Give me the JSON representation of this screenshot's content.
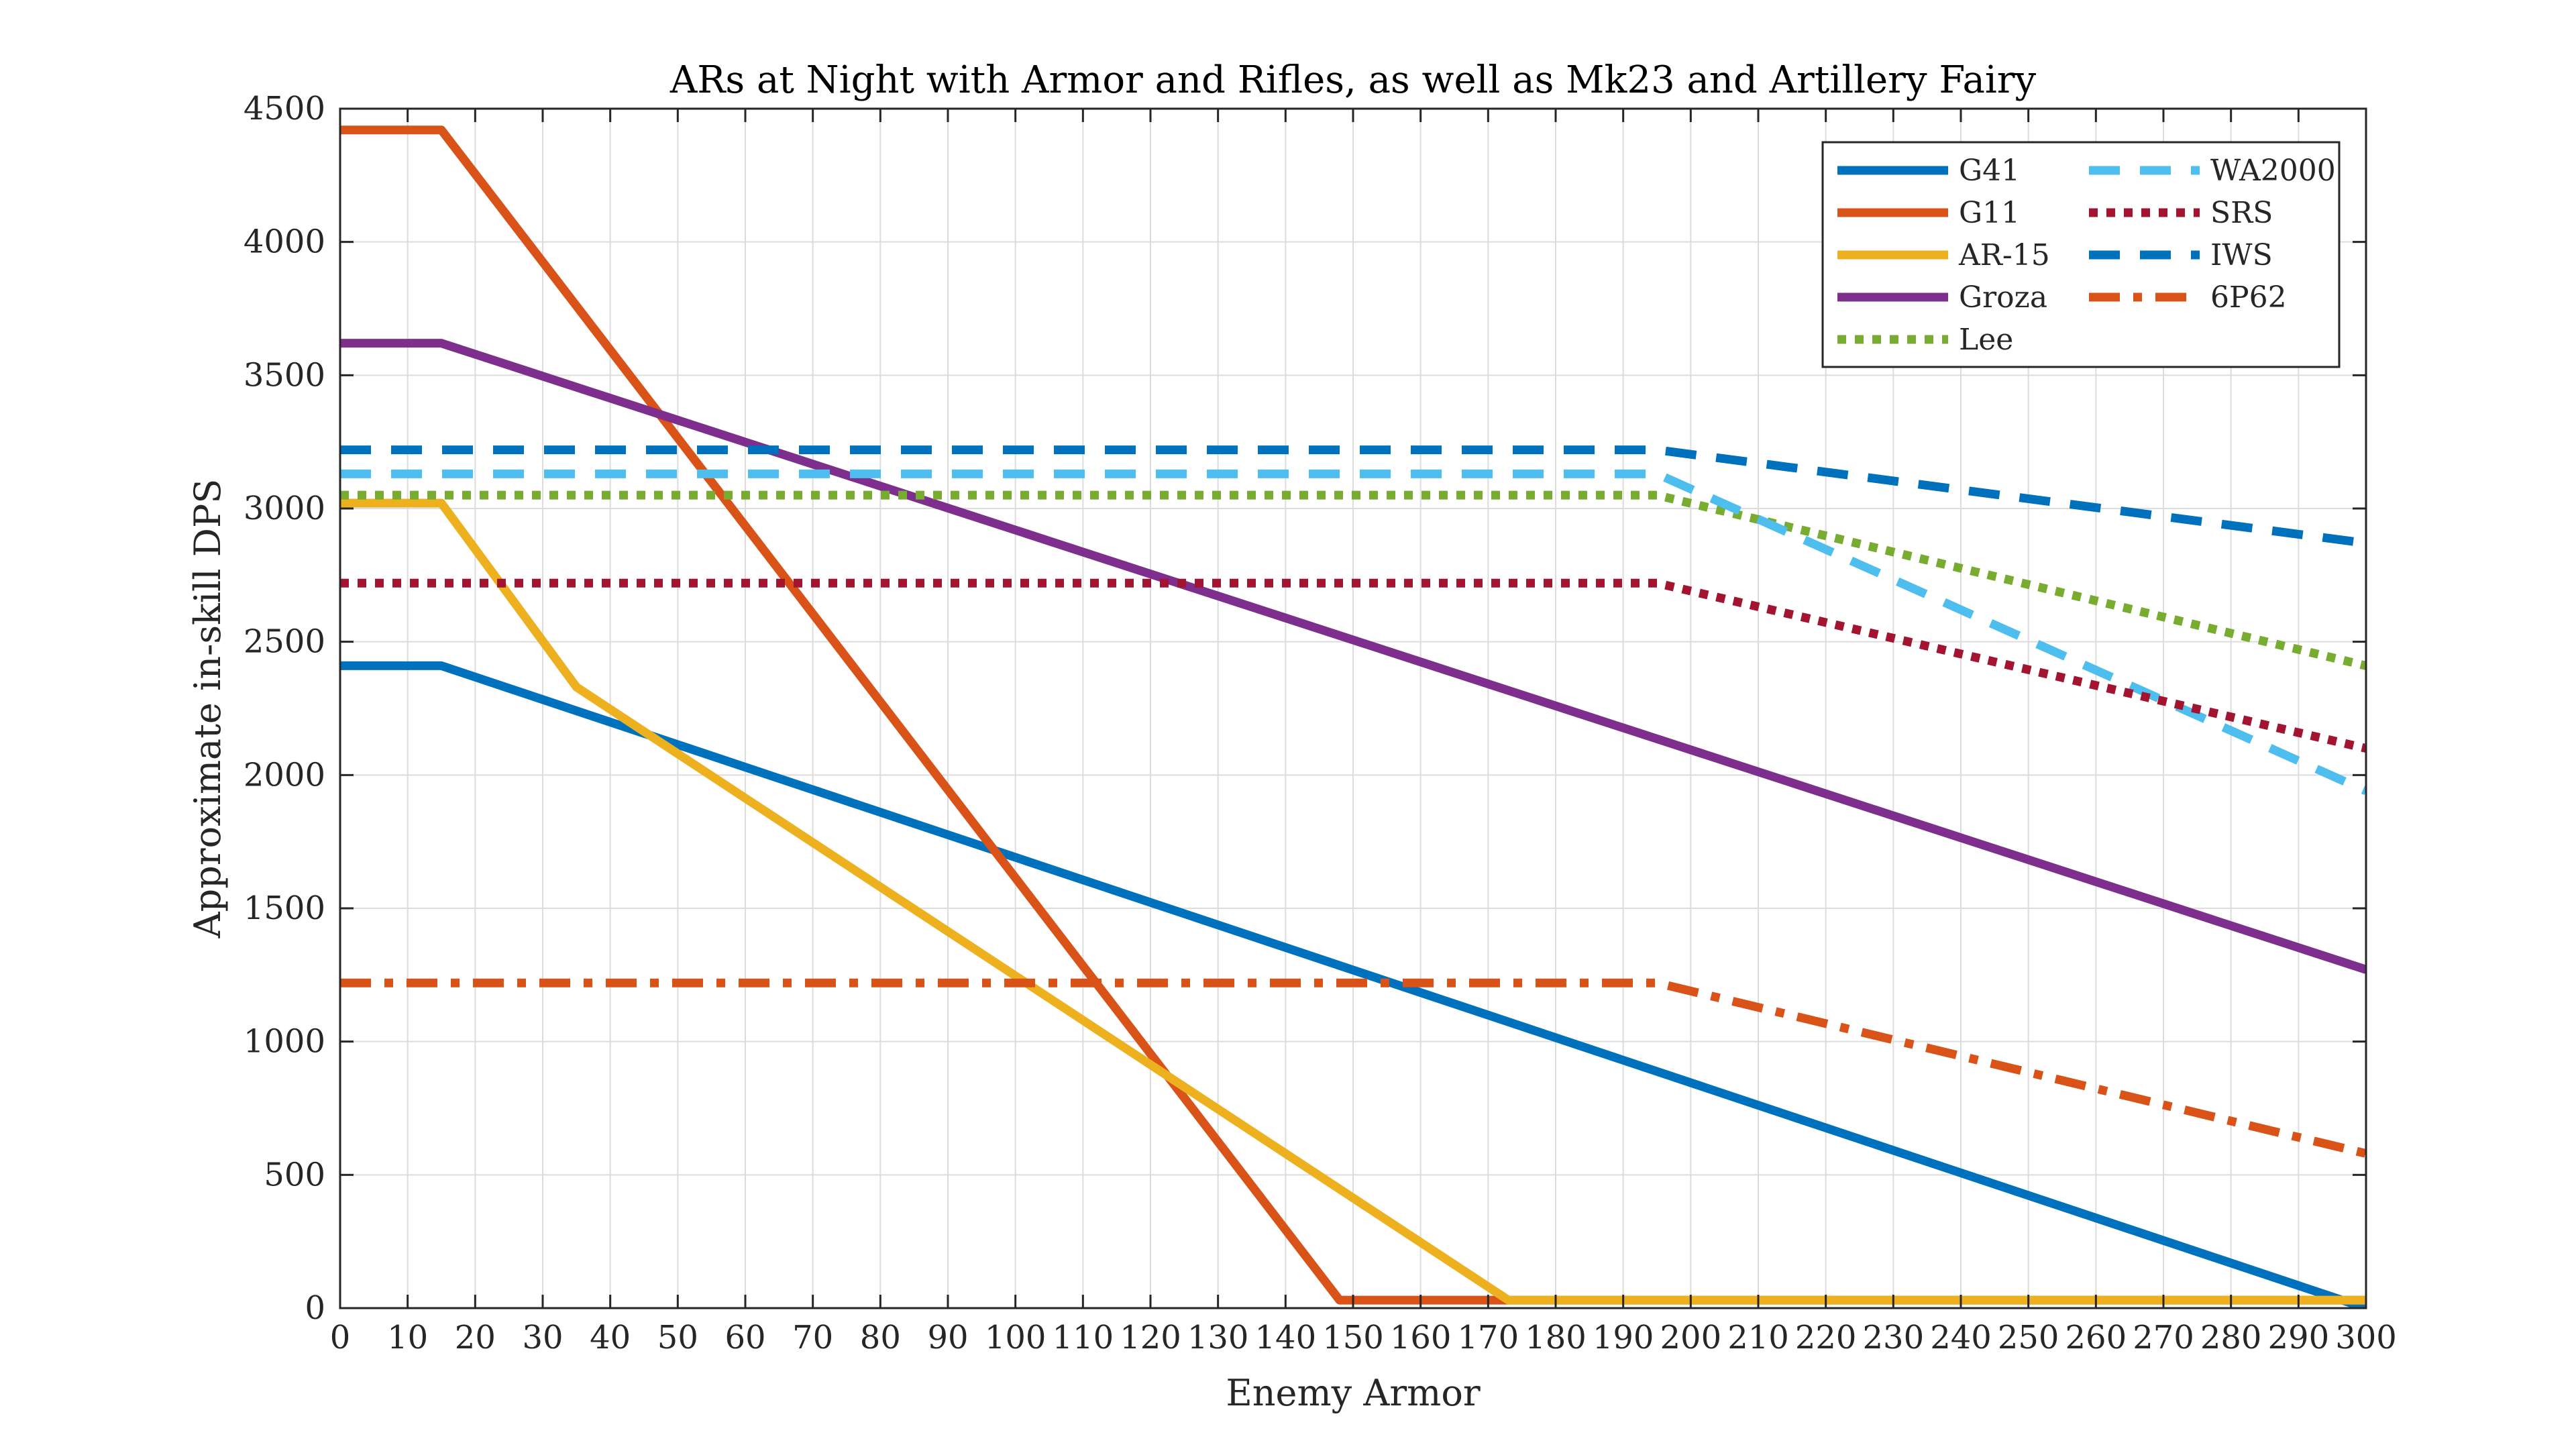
{
  "chart_data": {
    "type": "line",
    "title": "ARs at Night with Armor and Rifles, as well as Mk23 and Artillery Fairy",
    "xlabel": "Enemy Armor",
    "ylabel": "Approximate in-skill DPS",
    "xlim": [
      0,
      300
    ],
    "ylim": [
      0,
      4500
    ],
    "xticks": [
      0,
      10,
      20,
      30,
      40,
      50,
      60,
      70,
      80,
      90,
      100,
      110,
      120,
      130,
      140,
      150,
      160,
      170,
      180,
      190,
      200,
      210,
      220,
      230,
      240,
      250,
      260,
      270,
      280,
      290,
      300
    ],
    "yticks": [
      0,
      500,
      1000,
      1500,
      2000,
      2500,
      3000,
      3500,
      4000,
      4500
    ],
    "grid": true,
    "legend_position": "top-right",
    "legend_columns": 2,
    "series": [
      {
        "name": "G41",
        "color": "#0072BD",
        "style": "solid",
        "x": [
          0,
          15,
          300
        ],
        "y": [
          2410,
          2410,
          0
        ]
      },
      {
        "name": "G11",
        "color": "#D95319",
        "style": "solid",
        "x": [
          0,
          15,
          148,
          300
        ],
        "y": [
          4420,
          4420,
          30,
          30
        ]
      },
      {
        "name": "AR-15",
        "color": "#EDB120",
        "style": "solid",
        "x": [
          0,
          15,
          35,
          173,
          300
        ],
        "y": [
          3020,
          3020,
          2330,
          30,
          30
        ]
      },
      {
        "name": "Groza",
        "color": "#7E2F8E",
        "style": "solid",
        "x": [
          0,
          15,
          300
        ],
        "y": [
          3620,
          3620,
          1270
        ]
      },
      {
        "name": "Lee",
        "color": "#77AC30",
        "style": "dotted",
        "x": [
          0,
          195,
          300
        ],
        "y": [
          3050,
          3050,
          2410
        ]
      },
      {
        "name": "WA2000",
        "color": "#4DBEEE",
        "style": "dashed",
        "x": [
          0,
          195,
          300
        ],
        "y": [
          3130,
          3130,
          1940
        ]
      },
      {
        "name": "SRS",
        "color": "#A2142F",
        "style": "dotted",
        "x": [
          0,
          195,
          300
        ],
        "y": [
          2720,
          2720,
          2100
        ]
      },
      {
        "name": "IWS",
        "color": "#0072BD",
        "style": "dashed",
        "x": [
          0,
          195,
          300
        ],
        "y": [
          3220,
          3220,
          2870
        ]
      },
      {
        "name": "6P62",
        "color": "#D95319",
        "style": "dashdot",
        "x": [
          0,
          195,
          300
        ],
        "y": [
          1220,
          1220,
          580
        ]
      }
    ]
  }
}
